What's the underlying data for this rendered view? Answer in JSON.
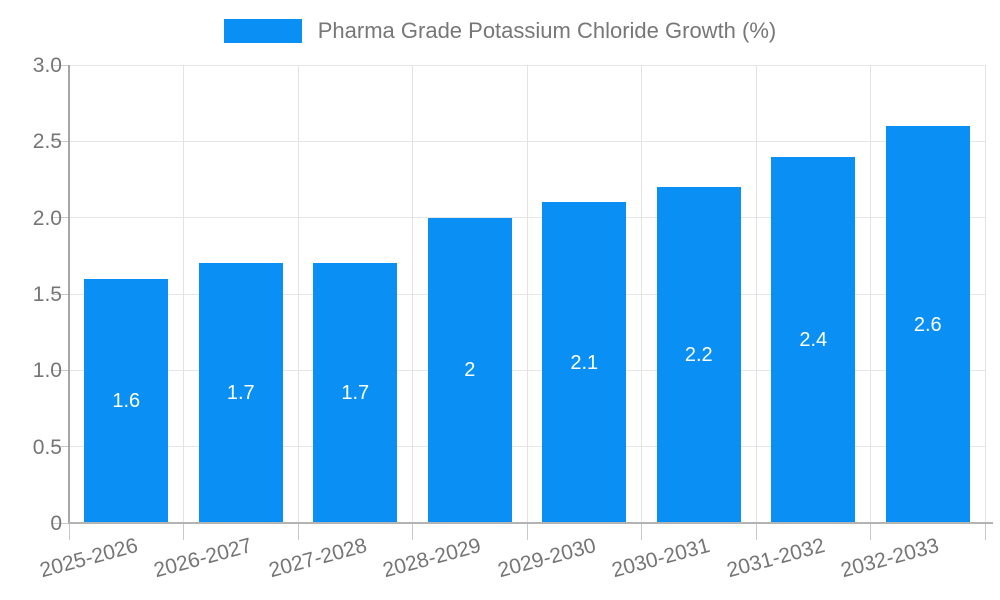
{
  "legend": {
    "label": "Pharma Grade Potassium Chloride Growth (%)"
  },
  "colors": {
    "bar": "#0a90f5",
    "legend_text": "#777777",
    "axis_text": "#757575",
    "grid": "#e6e6e6",
    "axis_line": "#a6a6a6",
    "bar_label_text": "#ffffff"
  },
  "chart_data": {
    "type": "bar",
    "title": "",
    "xlabel": "",
    "ylabel": "",
    "categories": [
      "2025-2026",
      "2026-2027",
      "2027-2028",
      "2028-2029",
      "2029-2030",
      "2030-2031",
      "2031-2032",
      "2032-2033"
    ],
    "values": [
      1.6,
      1.7,
      1.7,
      2,
      2.1,
      2.2,
      2.4,
      2.6
    ],
    "bar_labels": [
      "1.6",
      "1.7",
      "1.7",
      "2",
      "2.1",
      "2.2",
      "2.4",
      "2.6"
    ],
    "series": [
      {
        "name": "Pharma Grade Potassium Chloride Growth (%)",
        "values": [
          1.6,
          1.7,
          1.7,
          2,
          2.1,
          2.2,
          2.4,
          2.6
        ]
      }
    ],
    "ylim": [
      0,
      3
    ],
    "ytick_interval": 0.5,
    "ytick_labels": [
      "3.0",
      "2.5",
      "2.0",
      "1.5",
      "1.0",
      "0.5",
      "0"
    ],
    "grid": true,
    "legend_position": "top-center",
    "x_label_rotation_deg": -15
  }
}
